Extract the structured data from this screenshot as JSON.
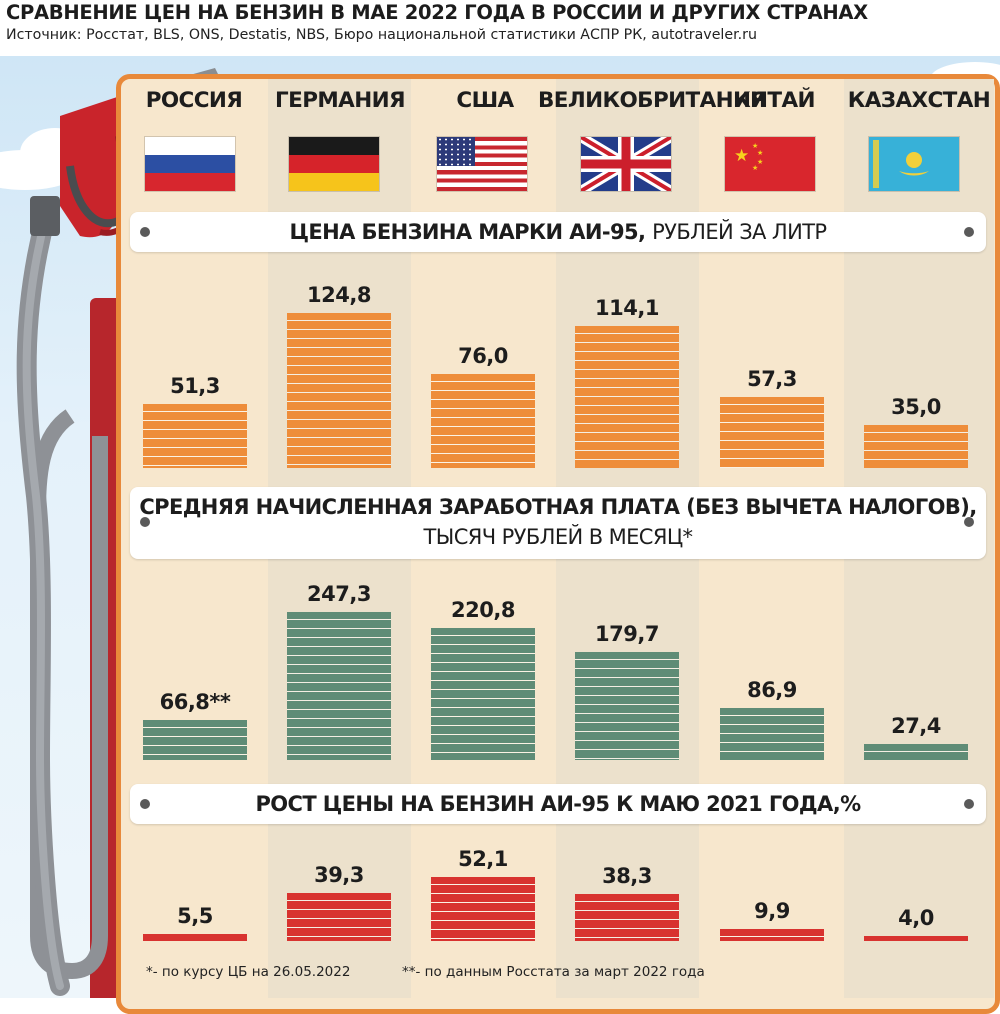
{
  "header": {
    "title": "СРАВНЕНИЕ ЦЕН НА БЕНЗИН В МАЕ 2022 ГОДА В РОССИИ И ДРУГИХ СТРАНАХ",
    "source": "Источник: Росстат, BLS, ONS, Destatis, NBS, Бюро национальной статистики АСПР РК, autotraveler.ru"
  },
  "countries": [
    {
      "name": "РОССИЯ",
      "flag": "russia-flag"
    },
    {
      "name": "ГЕРМАНИЯ",
      "flag": "germany-flag"
    },
    {
      "name": "США",
      "flag": "usa-flag"
    },
    {
      "name": "ВЕЛИКОБРИТАНИЯ",
      "flag": "uk-flag"
    },
    {
      "name": "КИТАЙ",
      "flag": "china-flag"
    },
    {
      "name": "КАЗАХСТАН",
      "flag": "kazakhstan-flag"
    }
  ],
  "colors": {
    "price": "#ee8d3a",
    "salary": "#5f8c76",
    "growth": "#d8332f",
    "panel_border": "#e8893a",
    "panel_bg": "#f7e7cd"
  },
  "chart_data": [
    {
      "type": "bar",
      "title": "ЦЕНА БЕНЗИНА МАРКИ АИ-95,",
      "title_unit": "РУБЛЕЙ ЗА ЛИТР",
      "categories": [
        "РОССИЯ",
        "ГЕРМАНИЯ",
        "США",
        "ВЕЛИКОБРИТАНИЯ",
        "КИТАЙ",
        "КАЗАХСТАН"
      ],
      "values": [
        51.3,
        124.8,
        76.0,
        114.1,
        57.3,
        35.0
      ],
      "labels": [
        "51,3",
        "124,8",
        "76,0",
        "114,1",
        "57,3",
        "35,0"
      ]
    },
    {
      "type": "bar",
      "title": "СРЕДНЯЯ НАЧИСЛЕННАЯ ЗАРАБОТНАЯ ПЛАТА (БЕЗ ВЫЧЕТА НАЛОГОВ),",
      "title_unit": "ТЫСЯЧ РУБЛЕЙ В МЕСЯЦ*",
      "categories": [
        "РОССИЯ",
        "ГЕРМАНИЯ",
        "США",
        "ВЕЛИКОБРИТАНИЯ",
        "КИТАЙ",
        "КАЗАХСТАН"
      ],
      "values": [
        66.8,
        247.3,
        220.8,
        179.7,
        86.9,
        27.4
      ],
      "labels": [
        "66,8**",
        "247,3",
        "220,8",
        "179,7",
        "86,9",
        "27,4"
      ]
    },
    {
      "type": "bar",
      "title": "РОСТ ЦЕНЫ НА БЕНЗИН АИ-95 К МАЮ 2021 ГОДА,%",
      "categories": [
        "РОССИЯ",
        "ГЕРМАНИЯ",
        "США",
        "ВЕЛИКОБРИТАНИЯ",
        "КИТАЙ",
        "КАЗАХСТАН"
      ],
      "values": [
        5.5,
        39.3,
        52.1,
        38.3,
        9.9,
        4.0
      ],
      "labels": [
        "5,5",
        "39,3",
        "52,1",
        "38,3",
        "9,9",
        "4,0"
      ]
    }
  ],
  "footnotes": {
    "note1": "*- по курсу ЦБ на 26.05.2022",
    "note2": "**- по данным Росстата за  март 2022 года"
  }
}
